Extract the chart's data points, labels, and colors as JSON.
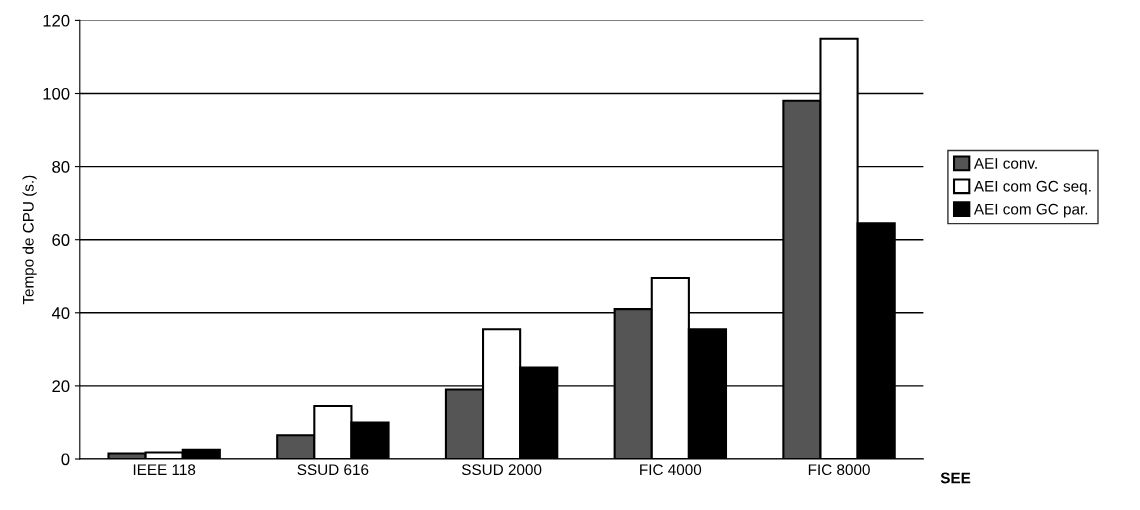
{
  "chart_data": {
    "type": "bar",
    "xlabel": "SEE",
    "ylabel": "Tempo de CPU (s.)",
    "categories": [
      "IEEE 118",
      "SSUD 616",
      "SSUD 2000",
      "FIC 4000",
      "FIC 8000"
    ],
    "series": [
      {
        "name": "AEI conv.",
        "color": "#555555",
        "values": [
          1.5,
          6.5,
          19,
          41,
          98
        ]
      },
      {
        "name": "AEI com GC seq.",
        "color": "#ffffff",
        "values": [
          1.8,
          14.5,
          35.5,
          49.5,
          115
        ]
      },
      {
        "name": "AEI com GC par.",
        "color": "#000000",
        "values": [
          2.5,
          10,
          25,
          35.5,
          64.5
        ]
      }
    ],
    "ylim": [
      0,
      120
    ],
    "yticks": [
      0,
      20,
      40,
      60,
      80,
      100,
      120
    ],
    "grid": "y",
    "legend": "right"
  }
}
